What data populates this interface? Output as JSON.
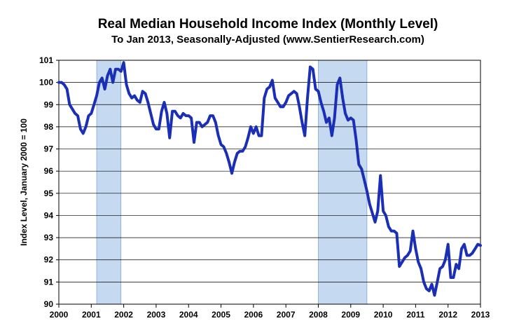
{
  "chart_data": {
    "type": "line",
    "title": "Real Median Household Income Index (Monthly Level)",
    "subtitle": "To Jan 2013, Seasonally-Adjusted (www.SentierResearch.com)",
    "xlabel": "",
    "ylabel": "Index Level, January 2000 = 100",
    "xlim": [
      2000,
      2013
    ],
    "ylim": [
      90,
      101
    ],
    "x_ticks": [
      "2000",
      "2001",
      "2002",
      "2003",
      "2004",
      "2005",
      "2006",
      "2007",
      "2008",
      "2009",
      "2010",
      "2011",
      "2012",
      "2013"
    ],
    "y_ticks": [
      "90",
      "91",
      "92",
      "93",
      "94",
      "95",
      "96",
      "97",
      "98",
      "99",
      "100",
      "101"
    ],
    "grid": true,
    "recessions": [
      [
        2001.167,
        2001.917
      ],
      [
        2008.0,
        2009.5
      ]
    ],
    "colors": {
      "line": "#1a2fb5",
      "recession_fill": "#c5d9f1",
      "grid": "#000000"
    },
    "series": [
      {
        "x": [
          2000.0,
          2000.083,
          2000.167,
          2000.25,
          2000.333,
          2000.417,
          2000.5,
          2000.583,
          2000.667,
          2000.75,
          2000.833,
          2000.917,
          2001.0,
          2001.083,
          2001.167,
          2001.25,
          2001.333,
          2001.417,
          2001.5,
          2001.583,
          2001.667,
          2001.75,
          2001.833,
          2001.917,
          2002.0,
          2002.083,
          2002.167,
          2002.25,
          2002.333,
          2002.417,
          2002.5,
          2002.583,
          2002.667,
          2002.75,
          2002.833,
          2002.917,
          2003.0,
          2003.083,
          2003.167,
          2003.25,
          2003.333,
          2003.417,
          2003.5,
          2003.583,
          2003.667,
          2003.75,
          2003.833,
          2003.917,
          2004.0,
          2004.083,
          2004.167,
          2004.25,
          2004.333,
          2004.417,
          2004.5,
          2004.583,
          2004.667,
          2004.75,
          2004.833,
          2004.917,
          2005.0,
          2005.083,
          2005.167,
          2005.25,
          2005.333,
          2005.417,
          2005.5,
          2005.583,
          2005.667,
          2005.75,
          2005.833,
          2005.917,
          2006.0,
          2006.083,
          2006.167,
          2006.25,
          2006.333,
          2006.417,
          2006.5,
          2006.583,
          2006.667,
          2006.75,
          2006.833,
          2006.917,
          2007.0,
          2007.083,
          2007.167,
          2007.25,
          2007.333,
          2007.417,
          2007.5,
          2007.583,
          2007.667,
          2007.75,
          2007.833,
          2007.917,
          2008.0,
          2008.083,
          2008.167,
          2008.25,
          2008.333,
          2008.417,
          2008.5,
          2008.583,
          2008.667,
          2008.75,
          2008.833,
          2008.917,
          2009.0,
          2009.083,
          2009.167,
          2009.25,
          2009.333,
          2009.417,
          2009.5,
          2009.583,
          2009.667,
          2009.75,
          2009.833,
          2009.917,
          2010.0,
          2010.083,
          2010.167,
          2010.25,
          2010.333,
          2010.417,
          2010.5,
          2010.583,
          2010.667,
          2010.75,
          2010.833,
          2010.917,
          2011.0,
          2011.083,
          2011.167,
          2011.25,
          2011.333,
          2011.417,
          2011.5,
          2011.583,
          2011.667,
          2011.75,
          2011.833,
          2011.917,
          2012.0,
          2012.083,
          2012.167,
          2012.25,
          2012.333,
          2012.417,
          2012.5,
          2012.583,
          2012.667,
          2012.75,
          2012.833,
          2012.917,
          2013.0
        ],
        "y": [
          100.0,
          100.0,
          99.9,
          99.7,
          99.0,
          98.8,
          98.6,
          98.5,
          97.9,
          97.7,
          98.0,
          98.5,
          98.6,
          99.0,
          99.4,
          100.0,
          100.2,
          99.7,
          100.3,
          100.6,
          100.0,
          100.6,
          100.6,
          100.5,
          100.9,
          99.9,
          99.5,
          99.3,
          99.4,
          99.2,
          99.1,
          99.6,
          99.5,
          99.1,
          98.6,
          98.1,
          97.9,
          97.9,
          98.7,
          99.1,
          98.6,
          97.5,
          98.7,
          98.7,
          98.5,
          98.4,
          98.6,
          98.5,
          98.5,
          98.4,
          97.3,
          98.2,
          98.2,
          98.0,
          98.1,
          98.2,
          98.5,
          98.5,
          98.2,
          97.6,
          97.2,
          97.1,
          96.8,
          96.4,
          95.9,
          96.4,
          96.8,
          96.9,
          96.9,
          97.1,
          97.5,
          98.0,
          97.7,
          98.0,
          97.6,
          97.6,
          99.3,
          99.7,
          99.8,
          100.1,
          99.3,
          99.1,
          98.9,
          98.9,
          99.1,
          99.4,
          99.5,
          99.6,
          99.5,
          98.9,
          98.2,
          97.6,
          99.3,
          100.7,
          100.6,
          99.7,
          99.6,
          99.1,
          98.7,
          98.2,
          98.4,
          97.6,
          98.4,
          99.9,
          100.2,
          99.3,
          98.6,
          98.3,
          98.4,
          98.3,
          97.4,
          96.3,
          96.1,
          95.6,
          95.1,
          94.5,
          94.1,
          93.7,
          94.2,
          95.8,
          94.2,
          94.0,
          93.5,
          93.3,
          93.3,
          93.2,
          91.7,
          91.9,
          92.1,
          92.2,
          92.4,
          93.3,
          92.5,
          91.9,
          91.6,
          91.0,
          90.7,
          90.6,
          90.9,
          90.4,
          91.0,
          91.6,
          91.7,
          92.0,
          92.7,
          91.2,
          91.2,
          91.8,
          91.6,
          92.5,
          92.7,
          92.2,
          92.2,
          92.3,
          92.5,
          92.7,
          92.65
        ]
      }
    ]
  }
}
